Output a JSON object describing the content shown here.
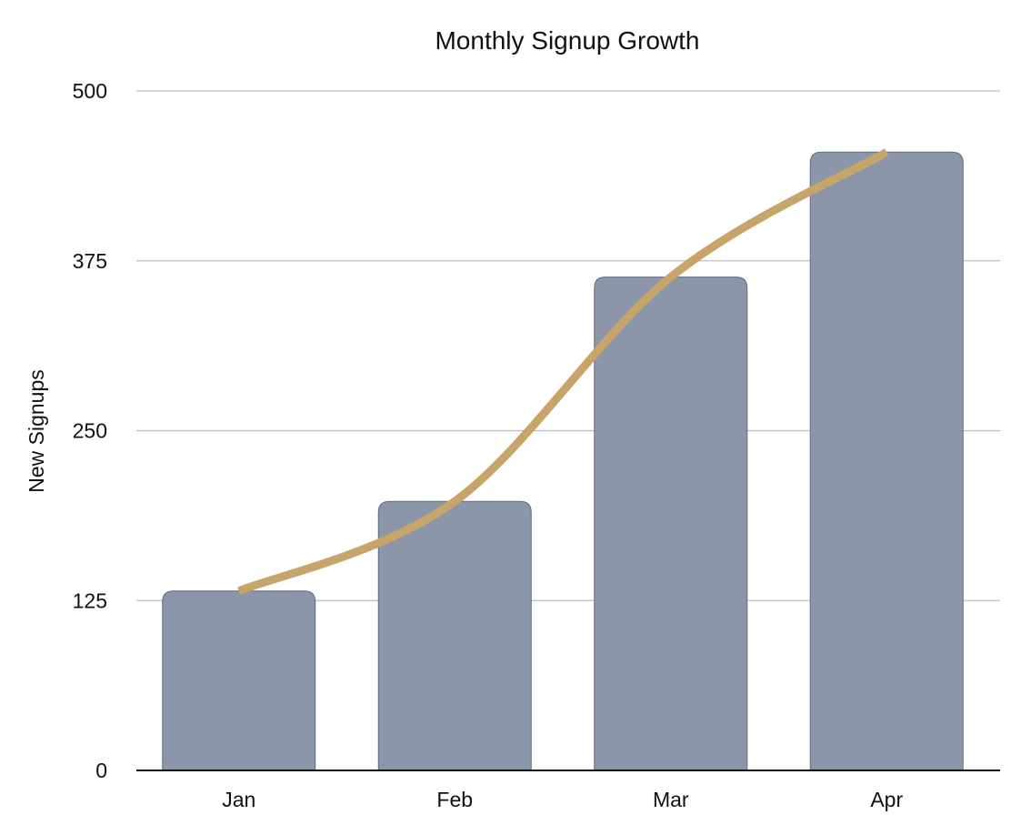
{
  "chart_data": {
    "type": "bar",
    "title": "Monthly Signup Growth",
    "xlabel": "",
    "ylabel": "New Signups",
    "categories": [
      "Jan",
      "Feb",
      "Mar",
      "Apr"
    ],
    "values": [
      132,
      198,
      363,
      455
    ],
    "ylim": [
      0,
      500
    ],
    "yticks": [
      0,
      125,
      250,
      375,
      500
    ],
    "grid": true,
    "legend": "none",
    "overlay": {
      "type": "line",
      "smooth": true,
      "values": [
        132,
        198,
        363,
        455
      ]
    },
    "colors": {
      "bar": "#8c96a9",
      "line": "#c6a46a"
    }
  }
}
